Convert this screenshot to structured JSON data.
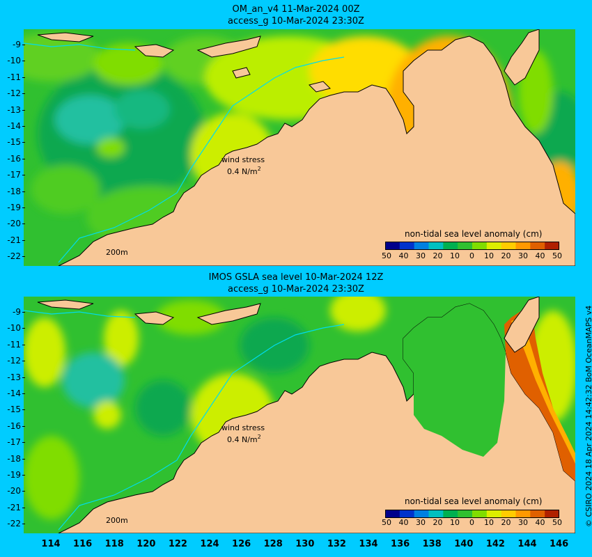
{
  "panel1": {
    "title_line1": "OM_an_v4  11-Mar-2024 00Z",
    "title_line2": "access_g 10-Mar-2024 23:30Z"
  },
  "panel2": {
    "title_line1": "IMOS GSLA sea level  10-Mar-2024 12Z",
    "title_line2": "access_g 10-Mar-2024 23:30Z"
  },
  "wind_label": "wind stress",
  "wind_scale": "0.4 N/m",
  "wind_scale_sup": "2",
  "depth_label": "200m",
  "colorbar": {
    "title": "non-tidal sea level anomaly (cm)",
    "ticks": [
      "50",
      "40",
      "30",
      "20",
      "10",
      "0",
      "10",
      "20",
      "30",
      "40",
      "50"
    ],
    "colors": [
      "#00008b",
      "#0033cc",
      "#0080e0",
      "#00c0c0",
      "#00b050",
      "#30c030",
      "#80dd00",
      "#ddee00",
      "#ffcc00",
      "#ff9900",
      "#e06000",
      "#b02000"
    ]
  },
  "y_ticks": [
    "-9",
    "-10",
    "-11",
    "-12",
    "-13",
    "-14",
    "-15",
    "-16",
    "-17",
    "-18",
    "-19",
    "-20",
    "-21",
    "-22"
  ],
  "x_ticks": [
    "114",
    "116",
    "118",
    "120",
    "122",
    "124",
    "126",
    "128",
    "130",
    "132",
    "134",
    "136",
    "138",
    "140",
    "142",
    "144",
    "146"
  ],
  "credit": "© CSIRO 2024   18 Apr 2024 14:42:32 BoM OceanMAPS v4",
  "colors": {
    "background": "#00ccff",
    "land": "#f8c898"
  }
}
